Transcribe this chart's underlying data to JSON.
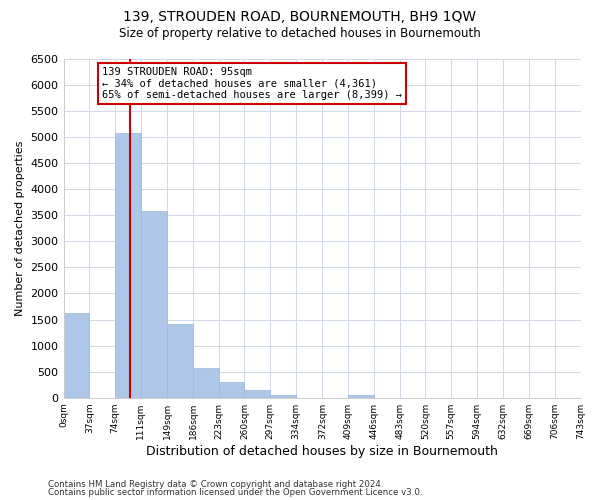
{
  "title": "139, STROUDEN ROAD, BOURNEMOUTH, BH9 1QW",
  "subtitle": "Size of property relative to detached houses in Bournemouth",
  "xlabel": "Distribution of detached houses by size in Bournemouth",
  "ylabel": "Number of detached properties",
  "footer_line1": "Contains HM Land Registry data © Crown copyright and database right 2024.",
  "footer_line2": "Contains public sector information licensed under the Open Government Licence v3.0.",
  "bar_color": "#aec6e8",
  "bar_edge_color": "#9ab8d8",
  "marker_color": "#cc0000",
  "annotation_box_edge": "#cc0000",
  "annotation_text_line1": "139 STROUDEN ROAD: 95sqm",
  "annotation_text_line2": "← 34% of detached houses are smaller (4,361)",
  "annotation_text_line3": "65% of semi-detached houses are larger (8,399) →",
  "bin_edges": [
    0,
    37,
    74,
    111,
    149,
    186,
    223,
    260,
    297,
    334,
    372,
    409,
    446,
    483,
    520,
    557,
    594,
    632,
    669,
    706,
    743
  ],
  "bar_heights": [
    1625,
    0,
    5075,
    3580,
    1420,
    575,
    295,
    140,
    50,
    0,
    0,
    50,
    0,
    0,
    0,
    0,
    0,
    0,
    0,
    0
  ],
  "property_line_x": 95,
  "ylim": [
    0,
    6500
  ],
  "yticks": [
    0,
    500,
    1000,
    1500,
    2000,
    2500,
    3000,
    3500,
    4000,
    4500,
    5000,
    5500,
    6000,
    6500
  ],
  "tick_labels": [
    "0sqm",
    "37sqm",
    "74sqm",
    "111sqm",
    "149sqm",
    "186sqm",
    "223sqm",
    "260sqm",
    "297sqm",
    "334sqm",
    "372sqm",
    "409sqm",
    "446sqm",
    "483sqm",
    "520sqm",
    "557sqm",
    "594sqm",
    "632sqm",
    "669sqm",
    "706sqm",
    "743sqm"
  ],
  "background_color": "#ffffff",
  "grid_color": "#d0d8e8"
}
